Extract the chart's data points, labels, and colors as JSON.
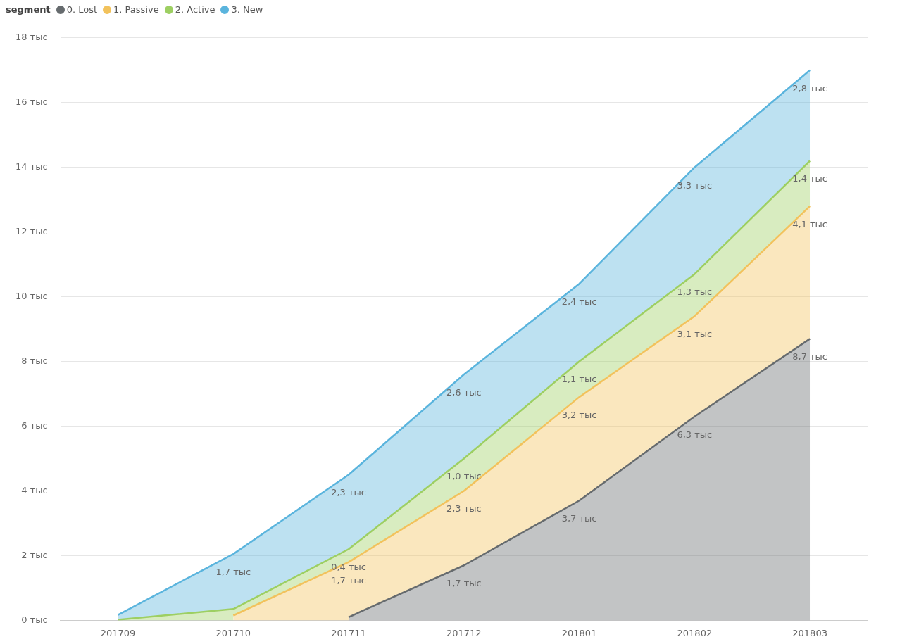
{
  "chart_data": {
    "type": "area",
    "stacked": true,
    "legend_title": "segment",
    "legend": "top left",
    "grid": "y",
    "marker": "none",
    "categories": [
      "201709",
      "201710",
      "201711",
      "201712",
      "201801",
      "201802",
      "201803"
    ],
    "ylim": [
      0,
      18
    ],
    "yticks": [
      {
        "value": 0,
        "label": "0 тыс"
      },
      {
        "value": 2,
        "label": "2 тыс"
      },
      {
        "value": 4,
        "label": "4 тыс"
      },
      {
        "value": 6,
        "label": "6 тыс"
      },
      {
        "value": 8,
        "label": "8 тыс"
      },
      {
        "value": 10,
        "label": "10 тыс"
      },
      {
        "value": 12,
        "label": "12 тыс"
      },
      {
        "value": 14,
        "label": "14 тыс"
      },
      {
        "value": 16,
        "label": "16 тыс"
      },
      {
        "value": 18,
        "label": "18 тыс"
      }
    ],
    "series": [
      {
        "name": "0. Lost",
        "color": "#666b6e",
        "values": [
          null,
          null,
          0.1,
          1.7,
          3.7,
          6.3,
          8.7
        ],
        "value_labels": [
          null,
          null,
          null,
          "1,7 тыс",
          "3,7 тыс",
          "6,3 тыс",
          "8,7 тыс"
        ]
      },
      {
        "name": "1. Passive",
        "color": "#f2c25c",
        "values": [
          null,
          0.15,
          1.7,
          2.3,
          3.2,
          3.1,
          4.1
        ],
        "value_labels": [
          null,
          null,
          "1,7 тыс",
          "2,3 тыс",
          "3,2 тыс",
          "3,1 тыс",
          "4,1 тыс"
        ]
      },
      {
        "name": "2. Active",
        "color": "#9dcf62",
        "values": [
          0.02,
          0.2,
          0.4,
          1.0,
          1.1,
          1.3,
          1.4
        ],
        "value_labels": [
          null,
          null,
          "0,4 тыс",
          "1,0 тыс",
          "1,1 тыс",
          "1,3 тыс",
          "1,4 тыс"
        ]
      },
      {
        "name": "3. New",
        "color": "#5ab4dd",
        "values": [
          0.15,
          1.7,
          2.3,
          2.6,
          2.4,
          3.3,
          2.8
        ],
        "value_labels": [
          null,
          "1,7 тыс",
          "2,3 тыс",
          "2,6 тыс",
          "2,4 тыс",
          "3,3 тыс",
          "2,8 тыс"
        ]
      }
    ]
  }
}
